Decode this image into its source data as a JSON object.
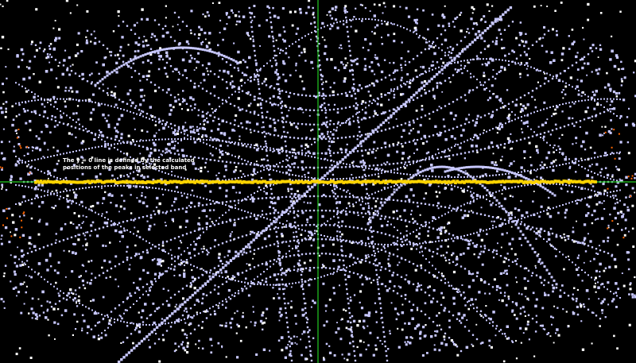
{
  "annotation": {
    "line1": "The y = 0 line is defined by the calculated",
    "line2": "positions of the peaks in selected band"
  },
  "colors": {
    "background": "#000000",
    "axis": "#22cc22",
    "peaks": "#c8c8ff",
    "band": "#ffd400",
    "white_points": "#ffffff",
    "outliers": "#ff6600"
  },
  "chart_data": {
    "type": "scatter",
    "title": "",
    "xlabel": "",
    "ylabel": "",
    "grid": false,
    "legend": "none",
    "series": [
      {
        "name": "",
        "values": []
      }
    ]
  }
}
